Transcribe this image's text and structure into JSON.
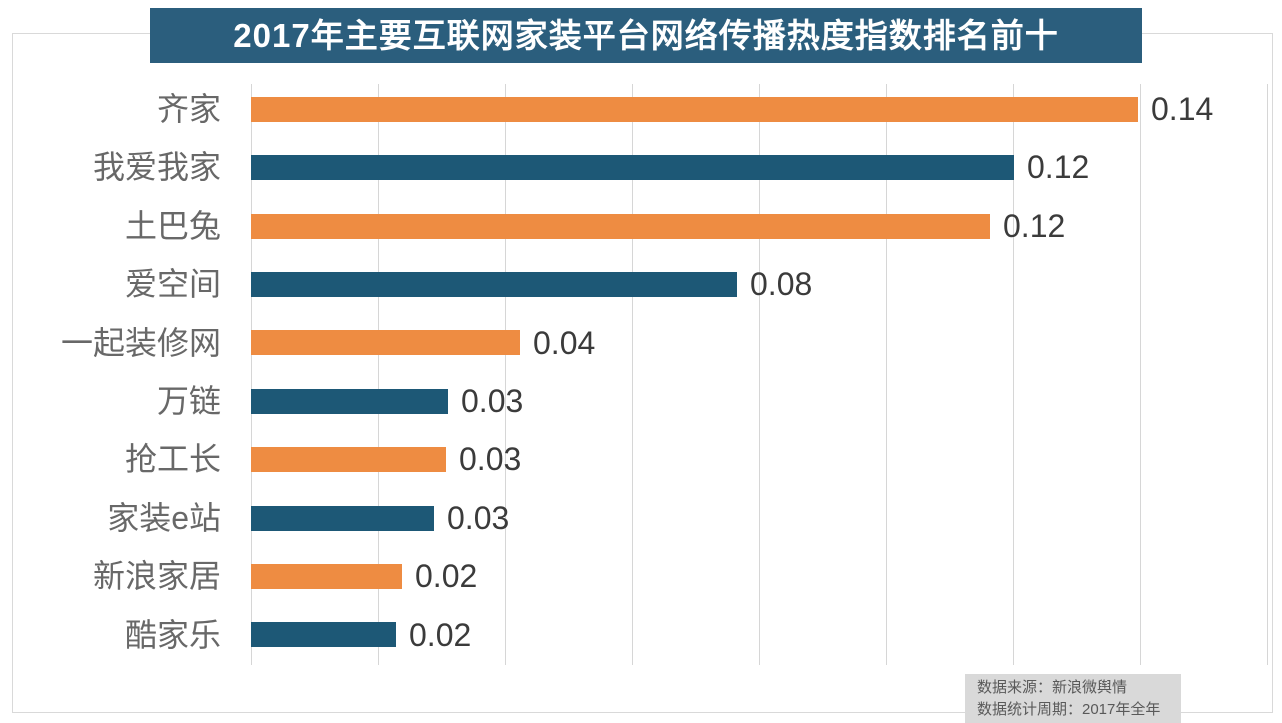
{
  "title": {
    "text": "2017年主要互联网家装平台网络传播热度指数排名前十",
    "bg_color": "#2b5e7d",
    "text_color": "#ffffff"
  },
  "chart_data": {
    "type": "bar",
    "orientation": "horizontal",
    "title": "2017年主要互联网家装平台网络传播热度指数排名前十",
    "categories": [
      "齐家",
      "我爱我家",
      "土巴兔",
      "爱空间",
      "一起装修网",
      "万链",
      "抢工长",
      "家装e站",
      "新浪家居",
      "酷家乐"
    ],
    "values": [
      0.14,
      0.12,
      0.12,
      0.08,
      0.04,
      0.03,
      0.03,
      0.03,
      0.02,
      0.02
    ],
    "data_labels": [
      "0.14",
      "0.12",
      "0.12",
      "0.08",
      "0.04",
      "0.03",
      "0.03",
      "0.03",
      "0.02",
      "0.02"
    ],
    "values_precise": [
      0.1397,
      0.1202,
      0.1164,
      0.0765,
      0.0424,
      0.031,
      0.0307,
      0.0288,
      0.0238,
      0.0228
    ],
    "xlim": [
      0,
      0.16
    ],
    "gridline_interval": 0.02,
    "grid": "vertical-only",
    "legend": "none",
    "bar_colors_alternating": [
      "#ee8c42",
      "#1d5876"
    ],
    "category_label_color": "#686868",
    "value_label_color": "#3b3b3b"
  },
  "source_note": {
    "line1": "数据来源：新浪微舆情",
    "line2": "数据统计周期：2017年全年",
    "bg_color": "#d9d9d9",
    "text_color": "#595959"
  }
}
